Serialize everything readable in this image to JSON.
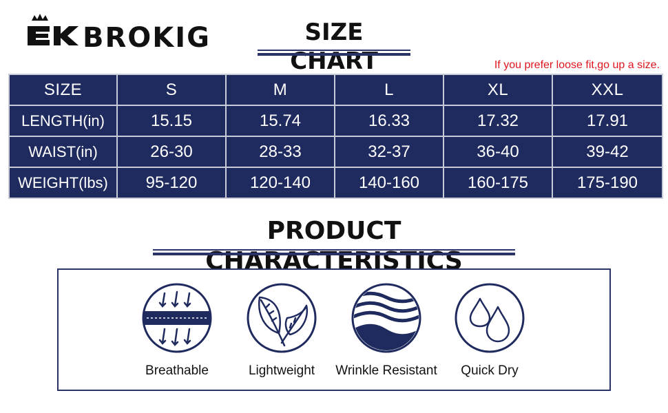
{
  "brand": {
    "name": "BROKIG"
  },
  "size_chart": {
    "title": "SIZE CHART",
    "note": "If you prefer loose fit,go up a size.",
    "columns": [
      "SIZE",
      "S",
      "M",
      "L",
      "XL",
      "XXL"
    ],
    "rows": [
      {
        "label": "LENGTH(in)",
        "values": [
          "15.15",
          "15.74",
          "16.33",
          "17.32",
          "17.91"
        ]
      },
      {
        "label": "WAIST(in)",
        "values": [
          "26-30",
          "28-33",
          "32-37",
          "36-40",
          "39-42"
        ]
      },
      {
        "label": "WEIGHT(lbs)",
        "values": [
          "95-120",
          "120-140",
          "140-160",
          "160-175",
          "175-190"
        ]
      }
    ]
  },
  "characteristics": {
    "title": "PRODUCT CHARACTERISTICS",
    "items": [
      {
        "label": "Breathable",
        "icon": "breathable-icon"
      },
      {
        "label": "Lightweight",
        "icon": "leaf-icon"
      },
      {
        "label": "Wrinkle Resistant",
        "icon": "wave-icon"
      },
      {
        "label": "Quick Dry",
        "icon": "droplets-icon"
      }
    ]
  },
  "colors": {
    "navy": "#1f2a5e",
    "accent_red": "#e0151d"
  }
}
